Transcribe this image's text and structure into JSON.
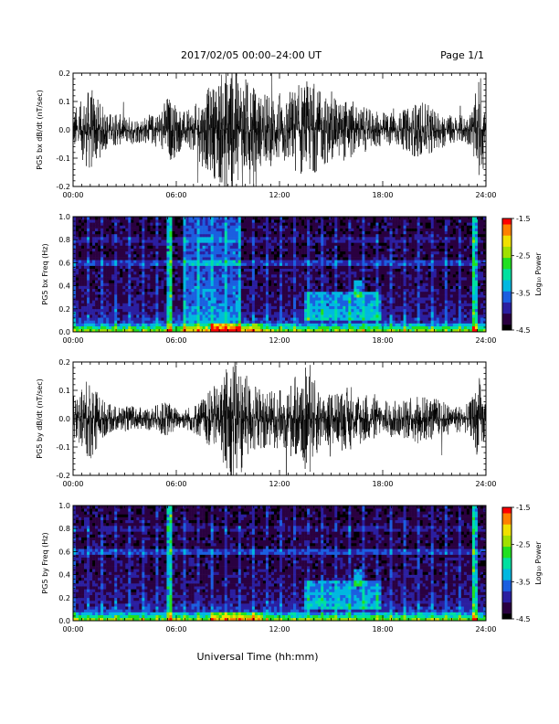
{
  "header": {
    "title": "2017/02/05  00:00–24:00 UT",
    "page": "Page 1/1"
  },
  "footer": {
    "xlabel": "Universal Time (hh:mm)"
  },
  "time_ticks": [
    "00:00",
    "06:00",
    "12:00",
    "18:00",
    "24:00"
  ],
  "colorbar": {
    "label": "Log₁₀ Power",
    "tick_labels": [
      "-1.5",
      "-2.5",
      "-3.5",
      "-4.5"
    ],
    "range": [
      -4.5,
      -1.5
    ],
    "colors": [
      "#000000",
      "#2a0040",
      "#2b1fa0",
      "#1b5fe0",
      "#00b8e0",
      "#00e0a0",
      "#20e020",
      "#a0e000",
      "#f0e000",
      "#ff8000",
      "#ff0000"
    ]
  },
  "chart_data": [
    {
      "type": "line",
      "ylabel": "PG5 bx dB/dt (nT/sec)",
      "x_range_hours": [
        0,
        24
      ],
      "ylim": [
        -0.2,
        0.2
      ],
      "y_ticks": [
        "-0.2",
        "-0.1",
        "0.0",
        "0.1",
        "0.2"
      ],
      "envelope": {
        "hours": [
          0,
          0.5,
          1,
          1.5,
          2,
          3,
          4,
          5,
          5.5,
          6,
          6.5,
          7,
          7.5,
          8,
          8.5,
          9,
          9.5,
          10,
          10.5,
          11,
          12,
          12.5,
          13,
          13.5,
          14,
          14.5,
          15,
          15.5,
          16,
          16.5,
          17,
          17.5,
          18,
          19,
          19.5,
          20,
          21,
          22,
          23,
          23.3,
          23.6,
          24
        ],
        "amplitude": [
          0.06,
          0.08,
          0.12,
          0.08,
          0.05,
          0.04,
          0.035,
          0.05,
          0.1,
          0.07,
          0.05,
          0.06,
          0.1,
          0.12,
          0.15,
          0.18,
          0.22,
          0.15,
          0.12,
          0.1,
          0.1,
          0.11,
          0.12,
          0.14,
          0.12,
          0.1,
          0.09,
          0.08,
          0.09,
          0.07,
          0.06,
          0.05,
          0.05,
          0.05,
          0.06,
          0.08,
          0.06,
          0.04,
          0.04,
          0.08,
          0.14,
          0.07
        ]
      }
    },
    {
      "type": "heatmap",
      "ylabel": "PG5 bx Freq (Hz)",
      "x_range_hours": [
        0,
        24
      ],
      "ylim": [
        0,
        1.0
      ],
      "y_ticks": [
        "0.0",
        "0.2",
        "0.4",
        "0.6",
        "0.8",
        "1.0"
      ],
      "z_range": [
        -4.5,
        -1.5
      ]
    },
    {
      "type": "line",
      "ylabel": "PG5 by dB/dt (nT/sec)",
      "x_range_hours": [
        0,
        24
      ],
      "ylim": [
        -0.2,
        0.2
      ],
      "y_ticks": [
        "-0.2",
        "-0.1",
        "0.0",
        "0.1",
        "0.2"
      ],
      "envelope": {
        "hours": [
          0,
          0.5,
          1,
          1.5,
          2,
          3,
          4,
          5,
          5.5,
          6,
          6.5,
          7,
          7.5,
          8,
          8.5,
          9,
          9.5,
          10,
          10.5,
          11,
          12,
          12.5,
          13,
          13.5,
          14,
          14.5,
          15,
          15.5,
          16,
          16.5,
          17,
          17.5,
          18,
          19,
          19.5,
          20,
          21,
          22,
          23,
          23.3,
          23.6,
          24
        ],
        "amplitude": [
          0.06,
          0.08,
          0.12,
          0.07,
          0.04,
          0.035,
          0.03,
          0.04,
          0.05,
          0.03,
          0.03,
          0.04,
          0.06,
          0.08,
          0.1,
          0.15,
          0.2,
          0.12,
          0.1,
          0.08,
          0.08,
          0.1,
          0.12,
          0.14,
          0.11,
          0.09,
          0.08,
          0.07,
          0.09,
          0.08,
          0.07,
          0.06,
          0.05,
          0.05,
          0.06,
          0.07,
          0.06,
          0.04,
          0.04,
          0.07,
          0.12,
          0.06
        ]
      }
    },
    {
      "type": "heatmap",
      "ylabel": "PG5 by Freq (Hz)",
      "x_range_hours": [
        0,
        24
      ],
      "ylim": [
        0,
        1.0
      ],
      "y_ticks": [
        "0.0",
        "0.2",
        "0.4",
        "0.6",
        "0.8",
        "1.0"
      ],
      "z_range": [
        -4.5,
        -1.5
      ]
    }
  ]
}
